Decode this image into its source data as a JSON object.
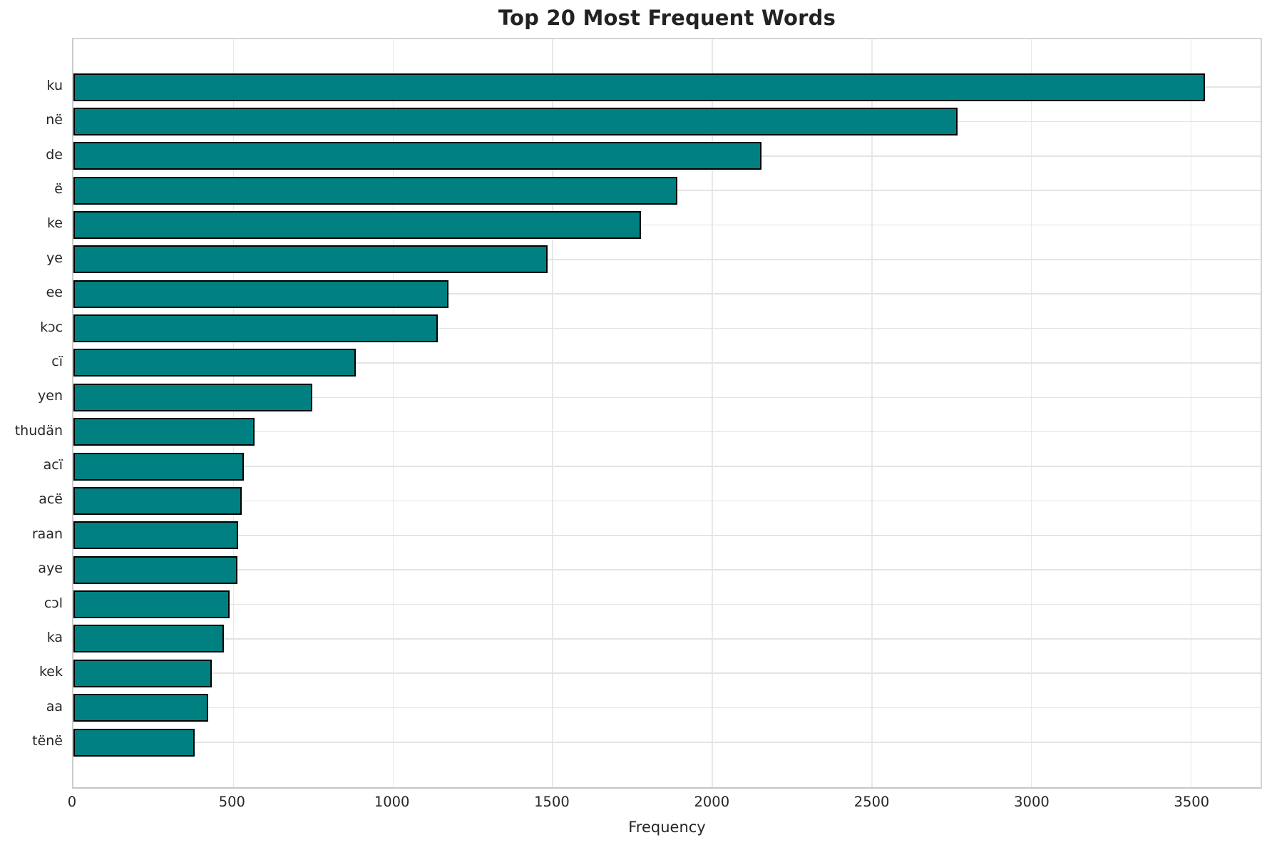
{
  "chart_data": {
    "type": "bar",
    "orientation": "horizontal",
    "title": "Top 20 Most Frequent Words",
    "xlabel": "Frequency",
    "ylabel": "",
    "categories": [
      "ku",
      "në",
      "de",
      "ë",
      "ke",
      "ye",
      "ee",
      "kɔc",
      "cï",
      "yen",
      "thudän",
      "acï",
      "acë",
      "raan",
      "aye",
      "cɔl",
      "ka",
      "kek",
      "aa",
      "tënë"
    ],
    "values": [
      3545,
      2770,
      2157,
      1893,
      1778,
      1486,
      1176,
      1141,
      885,
      748,
      568,
      535,
      528,
      517,
      514,
      489,
      471,
      434,
      423,
      380
    ],
    "xticks": [
      0,
      500,
      1000,
      1500,
      2000,
      2500,
      3000,
      3500
    ],
    "xlim": [
      0,
      3720
    ],
    "grid": "both",
    "legend": "none",
    "bar_color": "#008080",
    "bar_edge_color": "#000000",
    "grid_color": "#e6e6e6",
    "text_color": "#262626",
    "background_color": "#ffffff"
  }
}
